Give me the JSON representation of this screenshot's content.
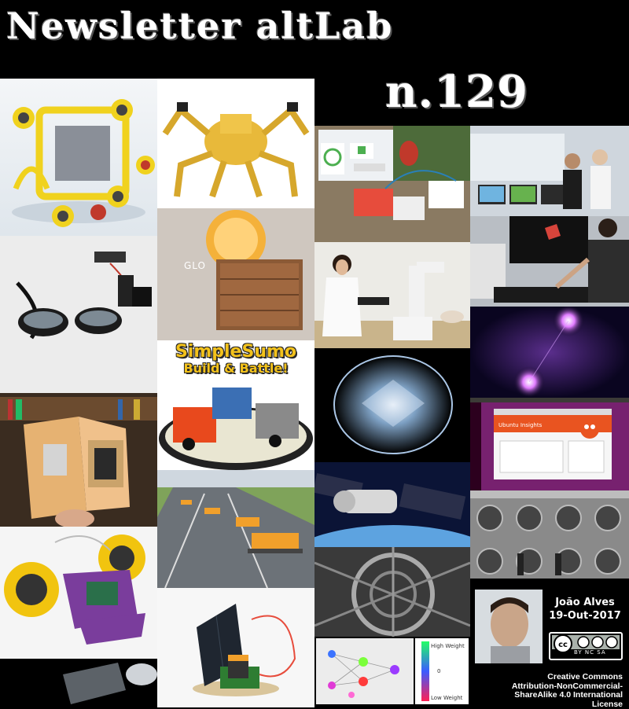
{
  "header": {
    "title": "Newsletter altLab",
    "issue": "n.129"
  },
  "tiles": {
    "sumo_line1": "SimpleSumo",
    "sumo_line2": "Build & Battle!",
    "glo_label": "GLO",
    "ubuntu_title": "Ubuntu Insights",
    "weight_high": "High Weight",
    "weight_mid": "0",
    "weight_low": "Low Weight"
  },
  "author": {
    "name": "João Alves",
    "date": "19-Out-2017"
  },
  "license": {
    "badge": "BY NC SA",
    "text_line1": "Creative Commons",
    "text_line2": "Attribution-NonCommercial-",
    "text_line3": "ShareAlike 4.0 International",
    "text_line4": "License"
  },
  "colors": {
    "background": "#000000",
    "title_text": "#ffffff",
    "sumo_yellow": "#f3c21b",
    "robot_yellow": "#f0d21e",
    "ubuntu_orange": "#e95420"
  }
}
